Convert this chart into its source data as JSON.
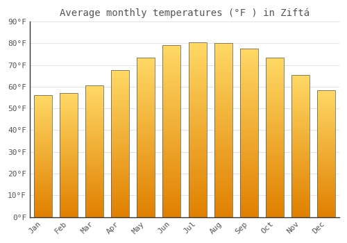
{
  "title": "Average monthly temperatures (°F ) in Ziftá",
  "months": [
    "Jan",
    "Feb",
    "Mar",
    "Apr",
    "May",
    "Jun",
    "Jul",
    "Aug",
    "Sep",
    "Oct",
    "Nov",
    "Dec"
  ],
  "values": [
    56,
    57,
    60.5,
    67.5,
    73.5,
    79,
    80.5,
    80,
    77.5,
    73.5,
    65.5,
    58.5
  ],
  "bar_color_top": "#FFD966",
  "bar_color_bottom": "#E08000",
  "edge_color": "#555555",
  "background_color": "#FFFFFF",
  "plot_bg_color": "#FFFFFF",
  "grid_color": "#DDDDDD",
  "text_color": "#555555",
  "ylim": [
    0,
    90
  ],
  "yticks": [
    0,
    10,
    20,
    30,
    40,
    50,
    60,
    70,
    80,
    90
  ],
  "ytick_labels": [
    "0°F",
    "10°F",
    "20°F",
    "30°F",
    "40°F",
    "50°F",
    "60°F",
    "70°F",
    "80°F",
    "90°F"
  ],
  "title_fontsize": 10,
  "tick_fontsize": 8,
  "figsize": [
    5.0,
    3.5
  ],
  "dpi": 100
}
